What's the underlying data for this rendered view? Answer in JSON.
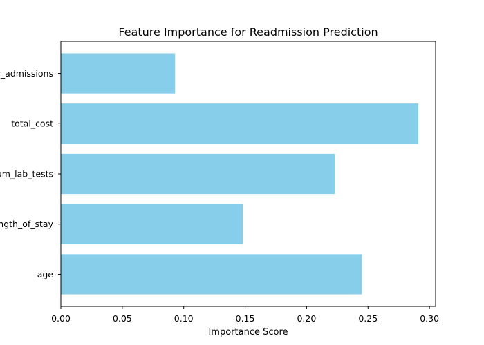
{
  "chart_data": {
    "type": "bar",
    "orientation": "horizontal",
    "title": "Feature Importance for Readmission Prediction",
    "xlabel": "Importance Score",
    "ylabel": "",
    "categories": [
      "age",
      "length_of_stay",
      "num_lab_tests",
      "total_cost",
      "prior_admissions"
    ],
    "values": [
      0.245,
      0.148,
      0.223,
      0.291,
      0.093
    ],
    "xlim": [
      0,
      0.305
    ],
    "xticks": [
      "0.00",
      "0.05",
      "0.10",
      "0.15",
      "0.20",
      "0.25",
      "0.30"
    ],
    "bar_color": "#87ceeb",
    "grid": false,
    "legend": "none"
  }
}
